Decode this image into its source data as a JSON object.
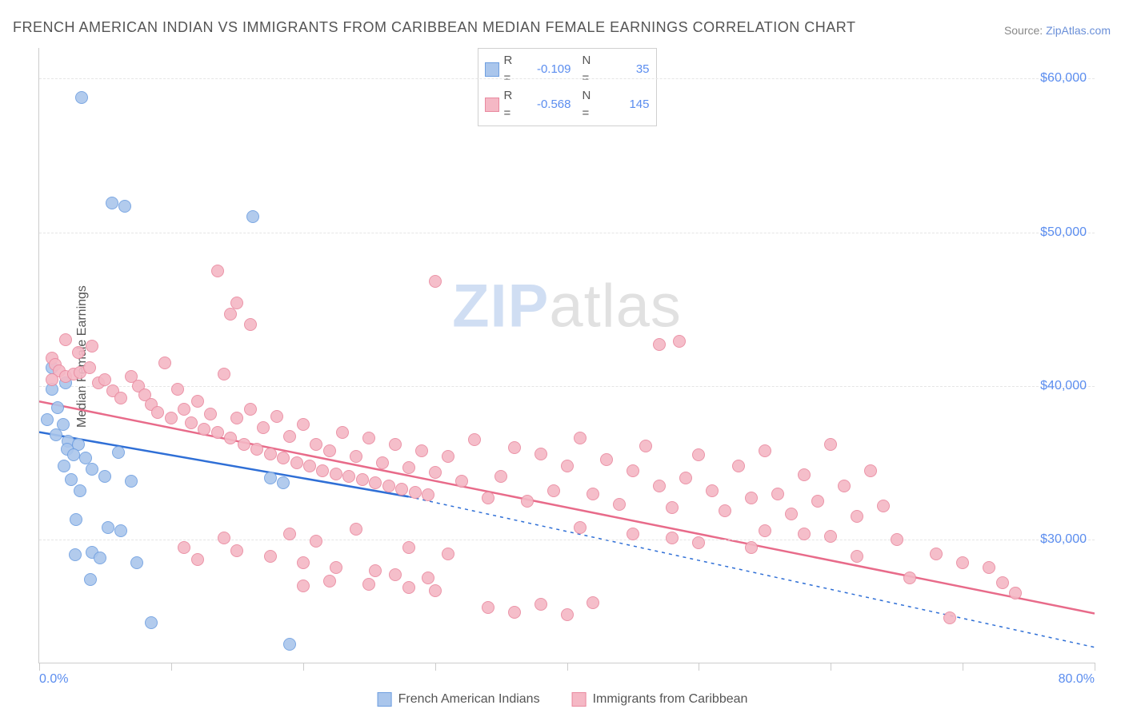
{
  "title": "FRENCH AMERICAN INDIAN VS IMMIGRANTS FROM CARIBBEAN MEDIAN FEMALE EARNINGS CORRELATION CHART",
  "source_label": "Source: ",
  "source_link_text": "ZipAtlas.com",
  "y_axis_label": "Median Female Earnings",
  "watermark_a": "ZIP",
  "watermark_b": "atlas",
  "chart": {
    "type": "scatter",
    "background_color": "#ffffff",
    "grid_color": "#e5e5e5",
    "axis_color": "#cccccc",
    "tick_label_color": "#5b8def",
    "text_color": "#555555",
    "xlim": [
      0,
      80
    ],
    "ylim": [
      22000,
      62000
    ],
    "x_tick_step": 10,
    "y_ticks": [
      30000,
      40000,
      50000,
      60000
    ],
    "y_tick_labels": [
      "$30,000",
      "$40,000",
      "$50,000",
      "$60,000"
    ],
    "x_min_label": "0.0%",
    "x_max_label": "80.0%",
    "marker_radius": 8,
    "marker_fill_opacity": 0.35,
    "marker_stroke_width": 1,
    "title_fontsize": 18,
    "label_fontsize": 16,
    "tick_fontsize": 16,
    "series": [
      {
        "key": "french_american_indian",
        "name": "French American Indians",
        "color_fill": "#aac6ec",
        "color_stroke": "#6f9fe0",
        "trend_color": "#2f6fd6",
        "trend_width": 2.5,
        "trend_dash_extend": "4 5",
        "R": "-0.109",
        "N": "35",
        "points": [
          [
            3.2,
            58800
          ],
          [
            5.5,
            51900
          ],
          [
            6.5,
            51700
          ],
          [
            16.2,
            51000
          ],
          [
            1.0,
            41200
          ],
          [
            2.0,
            40200
          ],
          [
            1.4,
            38600
          ],
          [
            0.6,
            37800
          ],
          [
            1.8,
            37500
          ],
          [
            1.3,
            36800
          ],
          [
            2.2,
            36400
          ],
          [
            3.0,
            36200
          ],
          [
            2.1,
            35900
          ],
          [
            2.6,
            35500
          ],
          [
            3.5,
            35300
          ],
          [
            1.9,
            34800
          ],
          [
            4.0,
            34600
          ],
          [
            6.0,
            35700
          ],
          [
            2.4,
            33900
          ],
          [
            5.0,
            34100
          ],
          [
            3.1,
            33200
          ],
          [
            7.0,
            33800
          ],
          [
            17.5,
            34000
          ],
          [
            18.5,
            33700
          ],
          [
            2.8,
            31300
          ],
          [
            5.2,
            30800
          ],
          [
            6.2,
            30600
          ],
          [
            4.0,
            29200
          ],
          [
            2.7,
            29000
          ],
          [
            4.6,
            28800
          ],
          [
            7.4,
            28500
          ],
          [
            3.9,
            27400
          ],
          [
            8.5,
            24600
          ],
          [
            19.0,
            23200
          ],
          [
            1.0,
            39800
          ]
        ],
        "trend": {
          "x0": 0,
          "y0": 37000,
          "x1": 28,
          "y1": 32800,
          "x_extend": 80,
          "y_extend": 23000
        }
      },
      {
        "key": "immigrants_caribbean",
        "name": "Immigrants from Caribbean",
        "color_fill": "#f5b8c5",
        "color_stroke": "#e9899f",
        "trend_color": "#e86b8a",
        "trend_width": 2.5,
        "R": "-0.568",
        "N": "145",
        "points": [
          [
            13.5,
            47500
          ],
          [
            15.0,
            45400
          ],
          [
            14.5,
            44700
          ],
          [
            16.0,
            44000
          ],
          [
            30.0,
            46800
          ],
          [
            1.0,
            41800
          ],
          [
            1.2,
            41400
          ],
          [
            1.5,
            41000
          ],
          [
            1.0,
            40400
          ],
          [
            2.0,
            40600
          ],
          [
            2.6,
            40800
          ],
          [
            3.1,
            40900
          ],
          [
            3.8,
            41200
          ],
          [
            4.5,
            40200
          ],
          [
            5.0,
            40400
          ],
          [
            5.6,
            39700
          ],
          [
            6.2,
            39200
          ],
          [
            7.0,
            40600
          ],
          [
            7.5,
            40000
          ],
          [
            8.0,
            39400
          ],
          [
            8.5,
            38800
          ],
          [
            9.0,
            38300
          ],
          [
            9.5,
            41500
          ],
          [
            10.0,
            37900
          ],
          [
            10.5,
            39800
          ],
          [
            11.0,
            38500
          ],
          [
            11.5,
            37600
          ],
          [
            12.0,
            39000
          ],
          [
            12.5,
            37200
          ],
          [
            13.0,
            38200
          ],
          [
            13.5,
            37000
          ],
          [
            14.0,
            40800
          ],
          [
            14.5,
            36600
          ],
          [
            15.0,
            37900
          ],
          [
            15.5,
            36200
          ],
          [
            16.0,
            38500
          ],
          [
            16.5,
            35900
          ],
          [
            17.0,
            37300
          ],
          [
            17.5,
            35600
          ],
          [
            18.0,
            38000
          ],
          [
            18.5,
            35300
          ],
          [
            19.0,
            36700
          ],
          [
            19.5,
            35000
          ],
          [
            20.0,
            37500
          ],
          [
            20.5,
            34800
          ],
          [
            21.0,
            36200
          ],
          [
            21.5,
            34500
          ],
          [
            22.0,
            35800
          ],
          [
            22.5,
            34300
          ],
          [
            23.0,
            37000
          ],
          [
            23.5,
            34100
          ],
          [
            24.0,
            35400
          ],
          [
            24.5,
            33900
          ],
          [
            25.0,
            36600
          ],
          [
            25.5,
            33700
          ],
          [
            26.0,
            35000
          ],
          [
            26.5,
            33500
          ],
          [
            27.0,
            36200
          ],
          [
            27.5,
            33300
          ],
          [
            28.0,
            34700
          ],
          [
            28.5,
            33100
          ],
          [
            29.0,
            35800
          ],
          [
            29.5,
            32900
          ],
          [
            30.0,
            34400
          ],
          [
            31.0,
            35400
          ],
          [
            32.0,
            33800
          ],
          [
            33.0,
            36500
          ],
          [
            34.0,
            32700
          ],
          [
            35.0,
            34100
          ],
          [
            36.0,
            36000
          ],
          [
            37.0,
            32500
          ],
          [
            38.0,
            35600
          ],
          [
            39.0,
            33200
          ],
          [
            40.0,
            34800
          ],
          [
            41.0,
            36600
          ],
          [
            42.0,
            33000
          ],
          [
            43.0,
            35200
          ],
          [
            44.0,
            32300
          ],
          [
            45.0,
            34500
          ],
          [
            46.0,
            36100
          ],
          [
            47.0,
            33500
          ],
          [
            48.0,
            32100
          ],
          [
            49.0,
            34000
          ],
          [
            50.0,
            35500
          ],
          [
            51.0,
            33200
          ],
          [
            52.0,
            31900
          ],
          [
            53.0,
            34800
          ],
          [
            54.0,
            32700
          ],
          [
            55.0,
            35800
          ],
          [
            56.0,
            33000
          ],
          [
            57.0,
            31700
          ],
          [
            58.0,
            34200
          ],
          [
            59.0,
            32500
          ],
          [
            60.0,
            36200
          ],
          [
            61.0,
            33500
          ],
          [
            62.0,
            31500
          ],
          [
            63.0,
            34500
          ],
          [
            64.0,
            32200
          ],
          [
            47.0,
            42700
          ],
          [
            48.5,
            42900
          ],
          [
            11.0,
            29500
          ],
          [
            12.0,
            28700
          ],
          [
            14.0,
            30100
          ],
          [
            15.0,
            29300
          ],
          [
            17.5,
            28900
          ],
          [
            19.0,
            30400
          ],
          [
            20.0,
            28500
          ],
          [
            21.0,
            29900
          ],
          [
            22.5,
            28200
          ],
          [
            24.0,
            30700
          ],
          [
            25.5,
            28000
          ],
          [
            27.0,
            27700
          ],
          [
            28.0,
            29500
          ],
          [
            29.5,
            27500
          ],
          [
            31.0,
            29100
          ],
          [
            20.0,
            27000
          ],
          [
            22.0,
            27300
          ],
          [
            25.0,
            27100
          ],
          [
            28.0,
            26900
          ],
          [
            30.0,
            26700
          ],
          [
            34.0,
            25600
          ],
          [
            36.0,
            25300
          ],
          [
            38.0,
            25800
          ],
          [
            40.0,
            25100
          ],
          [
            42.0,
            25900
          ],
          [
            45.0,
            30400
          ],
          [
            48.0,
            30100
          ],
          [
            41.0,
            30800
          ],
          [
            50.0,
            29800
          ],
          [
            55.0,
            30600
          ],
          [
            60.0,
            30200
          ],
          [
            65.0,
            30000
          ],
          [
            68.0,
            29100
          ],
          [
            70.0,
            28500
          ],
          [
            72.0,
            28200
          ],
          [
            73.0,
            27200
          ],
          [
            74.0,
            26500
          ],
          [
            69.0,
            24900
          ],
          [
            66.0,
            27500
          ],
          [
            62.0,
            28900
          ],
          [
            58.0,
            30400
          ],
          [
            54.0,
            29500
          ],
          [
            2.0,
            43000
          ],
          [
            3.0,
            42200
          ],
          [
            4.0,
            42600
          ]
        ],
        "trend": {
          "x0": 0,
          "y0": 39000,
          "x1": 80,
          "y1": 25200
        }
      }
    ]
  },
  "legend_bottom": [
    {
      "label": "French American Indians"
    },
    {
      "label": "Immigrants from Caribbean"
    }
  ]
}
